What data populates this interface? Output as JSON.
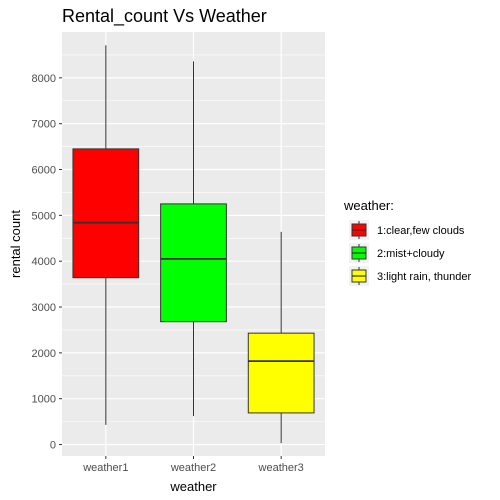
{
  "chart_data": {
    "type": "box",
    "title": "Rental_count Vs Weather",
    "xlabel": "weather",
    "ylabel": "rental count",
    "categories": [
      "weather1",
      "weather2",
      "weather3"
    ],
    "ylim": [
      -250,
      9000
    ],
    "yticks": [
      0,
      1000,
      2000,
      3000,
      4000,
      5000,
      6000,
      7000,
      8000
    ],
    "grid": true,
    "boxes": [
      {
        "category": "weather1",
        "min": 430,
        "q1": 3640,
        "median": 4840,
        "q3": 6450,
        "max": 8710,
        "color": "#FF0000"
      },
      {
        "category": "weather2",
        "min": 620,
        "q1": 2680,
        "median": 4050,
        "q3": 5250,
        "max": 8360,
        "color": "#00FF00"
      },
      {
        "category": "weather3",
        "min": 30,
        "q1": 690,
        "median": 1820,
        "q3": 2430,
        "max": 4640,
        "color": "#FFFF00"
      }
    ],
    "legend": {
      "title": "weather:",
      "position": "right",
      "entries": [
        {
          "label": "1:clear,few clouds",
          "color": "#FF0000"
        },
        {
          "label": "2:mist+cloudy",
          "color": "#00FF00"
        },
        {
          "label": "3:light rain, thunder",
          "color": "#FFFF00"
        }
      ]
    },
    "panel_color": "#EBEBEB",
    "grid_color": "#FFFFFF"
  }
}
